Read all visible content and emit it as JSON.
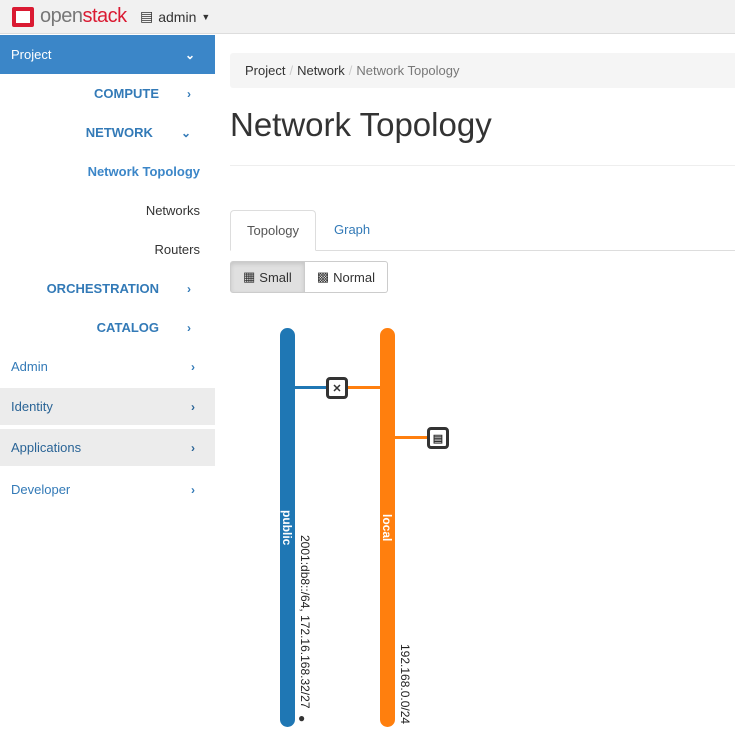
{
  "header": {
    "brand_prefix": "open",
    "brand_suffix": "stack",
    "project": "admin"
  },
  "sidebar": {
    "items": [
      {
        "label": "Project"
      },
      {
        "label": "COMPUTE"
      },
      {
        "label": "NETWORK"
      },
      {
        "label": "Network Topology"
      },
      {
        "label": "Networks"
      },
      {
        "label": "Routers"
      },
      {
        "label": "ORCHESTRATION"
      },
      {
        "label": "CATALOG"
      },
      {
        "label": "Admin"
      },
      {
        "label": "Identity"
      },
      {
        "label": "Applications"
      },
      {
        "label": "Developer"
      }
    ]
  },
  "breadcrumb": [
    "Project",
    "Network",
    "Network Topology"
  ],
  "page_title": "Network Topology",
  "tabs": [
    "Topology",
    "Graph"
  ],
  "view_buttons": [
    "Small",
    "Normal"
  ],
  "topology": {
    "networks": [
      {
        "name": "public",
        "subnets": "2001:db8::/64, 172.16.168.32/27",
        "color": "#1f77b4",
        "external": true
      },
      {
        "name": "local",
        "subnets": "192.168.0.0/24",
        "color": "#ff7f0e"
      }
    ],
    "devices": [
      {
        "type": "router-icon"
      },
      {
        "type": "server-icon"
      }
    ]
  }
}
